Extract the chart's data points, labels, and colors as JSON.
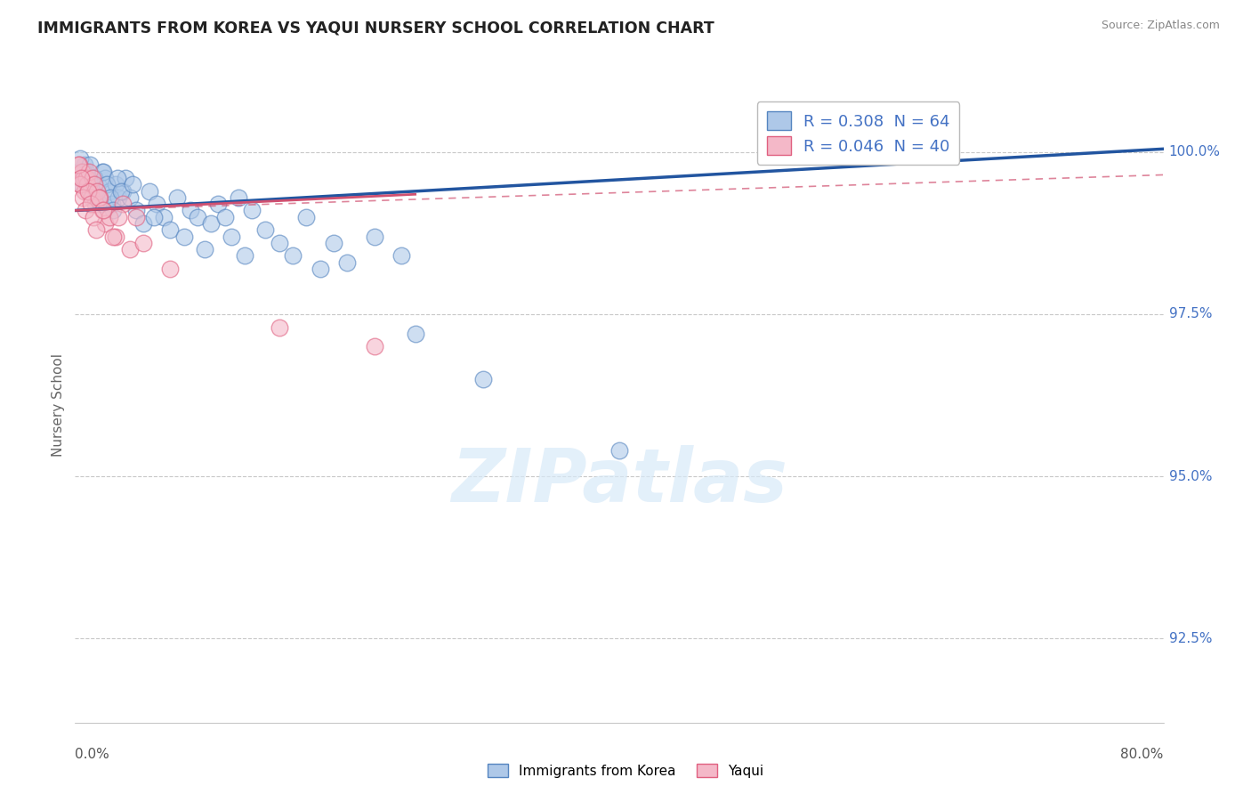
{
  "title": "IMMIGRANTS FROM KOREA VS YAQUI NURSERY SCHOOL CORRELATION CHART",
  "source": "Source: ZipAtlas.com",
  "ylabel": "Nursery School",
  "yticks": [
    92.5,
    95.0,
    97.5,
    100.0
  ],
  "ytick_labels": [
    "92.5%",
    "95.0%",
    "97.5%",
    "100.0%"
  ],
  "xmin": 0.0,
  "xmax": 80.0,
  "ymin": 91.2,
  "ymax": 101.0,
  "legend_blue_label": "R = 0.308  N = 64",
  "legend_pink_label": "R = 0.046  N = 40",
  "legend_blue_color": "#aec8e8",
  "legend_blue_edge": "#5585c0",
  "legend_pink_color": "#f4b8c8",
  "legend_pink_edge": "#e06080",
  "scatter_blue_color": "#aec8e8",
  "scatter_blue_edge": "#5585c0",
  "scatter_pink_color": "#f4b8c8",
  "scatter_pink_edge": "#e06080",
  "line_blue_color": "#2255a0",
  "line_pink_color": "#d05070",
  "watermark_text": "ZIPatlas",
  "blue_scatter_x": [
    0.3,
    0.5,
    0.7,
    0.8,
    1.0,
    1.2,
    1.3,
    1.5,
    1.7,
    2.0,
    2.2,
    2.5,
    2.7,
    3.0,
    3.2,
    3.5,
    3.7,
    4.0,
    4.5,
    5.0,
    5.5,
    6.0,
    6.5,
    7.0,
    7.5,
    8.0,
    8.5,
    9.0,
    9.5,
    10.0,
    10.5,
    11.0,
    11.5,
    12.0,
    12.5,
    13.0,
    14.0,
    15.0,
    16.0,
    17.0,
    18.0,
    19.0,
    20.0,
    22.0,
    24.0,
    0.4,
    0.6,
    0.9,
    1.1,
    1.4,
    1.6,
    1.8,
    2.1,
    2.3,
    2.6,
    2.8,
    3.1,
    3.4,
    4.2,
    5.8,
    25.0,
    30.0,
    40.0,
    60.0
  ],
  "blue_scatter_y": [
    99.6,
    99.5,
    99.8,
    99.7,
    99.5,
    99.6,
    99.4,
    99.3,
    99.5,
    99.7,
    99.6,
    99.4,
    99.2,
    99.5,
    99.3,
    99.4,
    99.6,
    99.3,
    99.1,
    98.9,
    99.4,
    99.2,
    99.0,
    98.8,
    99.3,
    98.7,
    99.1,
    99.0,
    98.5,
    98.9,
    99.2,
    99.0,
    98.7,
    99.3,
    98.4,
    99.1,
    98.8,
    98.6,
    98.4,
    99.0,
    98.2,
    98.6,
    98.3,
    98.7,
    98.4,
    99.9,
    99.7,
    99.5,
    99.8,
    99.6,
    99.4,
    99.2,
    99.7,
    99.5,
    99.3,
    99.1,
    99.6,
    99.4,
    99.5,
    99.0,
    97.2,
    96.5,
    95.4,
    99.95
  ],
  "pink_scatter_x": [
    0.2,
    0.3,
    0.4,
    0.5,
    0.6,
    0.7,
    0.8,
    0.9,
    1.0,
    1.1,
    1.2,
    1.3,
    1.4,
    1.5,
    1.6,
    1.8,
    2.0,
    2.2,
    2.5,
    3.0,
    3.5,
    4.0,
    4.5,
    5.0,
    0.35,
    0.55,
    0.75,
    0.95,
    1.15,
    1.35,
    1.55,
    1.75,
    2.1,
    2.8,
    3.2,
    0.25,
    0.45,
    7.0,
    15.0,
    22.0
  ],
  "pink_scatter_y": [
    99.65,
    99.8,
    99.5,
    99.7,
    99.6,
    99.4,
    99.6,
    99.5,
    99.7,
    99.4,
    99.3,
    99.6,
    99.5,
    99.2,
    99.4,
    99.3,
    99.1,
    98.9,
    99.0,
    98.7,
    99.2,
    98.5,
    99.0,
    98.6,
    99.5,
    99.3,
    99.1,
    99.4,
    99.2,
    99.0,
    98.8,
    99.3,
    99.1,
    98.7,
    99.0,
    99.8,
    99.6,
    98.2,
    97.3,
    97.0
  ],
  "blue_trend": [
    0.0,
    80.0,
    99.1,
    100.05
  ],
  "pink_solid_trend": [
    0.0,
    25.0,
    99.1,
    99.35
  ],
  "pink_dashed_trend": [
    0.0,
    80.0,
    99.1,
    99.65
  ]
}
